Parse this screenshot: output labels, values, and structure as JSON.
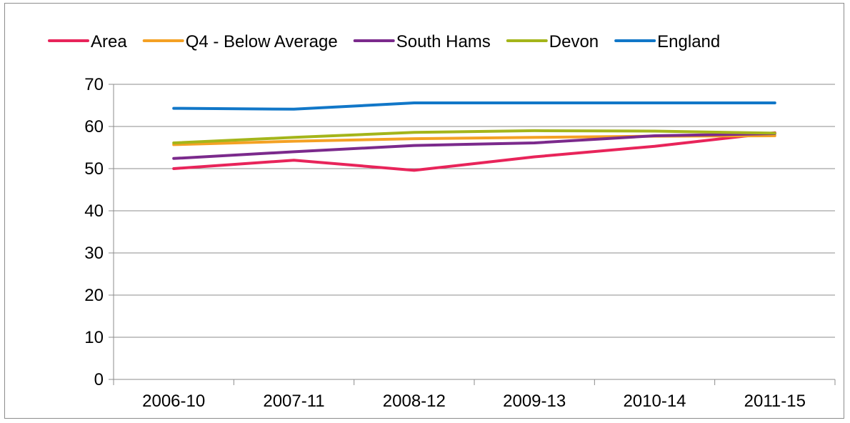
{
  "chart_data": {
    "type": "line",
    "categories": [
      "2006-10",
      "2007-11",
      "2008-12",
      "2009-13",
      "2010-14",
      "2011-15"
    ],
    "ylim": [
      0,
      70
    ],
    "yticks": [
      0,
      10,
      20,
      30,
      40,
      50,
      60,
      70
    ],
    "grid": true,
    "legend_position": "top",
    "series": [
      {
        "name": "Area",
        "color": "#e8245a",
        "values": [
          50.0,
          52.0,
          49.6,
          52.8,
          55.3,
          58.5
        ]
      },
      {
        "name": "Q4 - Below Average",
        "color": "#f4a124",
        "values": [
          55.7,
          56.5,
          57.1,
          57.4,
          57.7,
          57.8
        ]
      },
      {
        "name": "South Hams",
        "color": "#7b2a8c",
        "values": [
          52.4,
          54.0,
          55.5,
          56.1,
          57.8,
          58.3
        ]
      },
      {
        "name": "Devon",
        "color": "#a4b51a",
        "values": [
          56.1,
          57.4,
          58.6,
          59.0,
          58.9,
          58.4
        ]
      },
      {
        "name": "England",
        "color": "#1177c8",
        "values": [
          64.3,
          64.1,
          65.6,
          65.6,
          65.6,
          65.6
        ]
      }
    ]
  }
}
